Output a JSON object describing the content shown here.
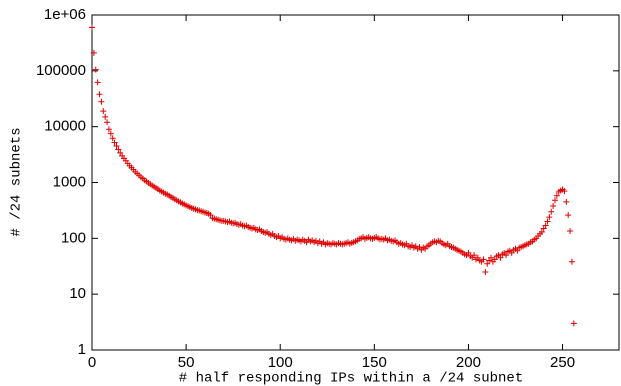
{
  "chart_data": {
    "type": "scatter",
    "xlabel": "# half responding IPs within a /24 subnet",
    "ylabel": "# /24 subnets",
    "ylog": true,
    "xlim": [
      0,
      280
    ],
    "ylim": [
      1,
      1000000
    ],
    "xticks": [
      0,
      50,
      100,
      150,
      200,
      250
    ],
    "yticks": [
      1,
      10,
      100,
      1000,
      10000,
      100000,
      {
        "value": 1000000,
        "label": "1e+06"
      }
    ],
    "series": [
      {
        "color": "#e00000",
        "x": [
          0,
          1,
          2,
          3,
          4,
          5,
          6,
          7,
          8,
          9,
          10,
          11,
          12,
          13,
          14,
          15,
          16,
          17,
          18,
          19,
          20,
          21,
          22,
          23,
          24,
          25,
          26,
          27,
          28,
          29,
          30,
          31,
          32,
          33,
          34,
          35,
          36,
          37,
          38,
          39,
          40,
          41,
          42,
          43,
          44,
          45,
          46,
          47,
          48,
          49,
          50,
          51,
          52,
          53,
          54,
          55,
          56,
          57,
          58,
          59,
          60,
          61,
          62,
          63,
          64,
          65,
          66,
          67,
          68,
          69,
          70,
          71,
          72,
          73,
          74,
          75,
          76,
          77,
          78,
          79,
          80,
          81,
          82,
          83,
          84,
          85,
          86,
          87,
          88,
          89,
          90,
          91,
          92,
          93,
          94,
          95,
          96,
          97,
          98,
          99,
          100,
          101,
          102,
          103,
          104,
          105,
          106,
          107,
          108,
          109,
          110,
          111,
          112,
          113,
          114,
          115,
          116,
          117,
          118,
          119,
          120,
          121,
          122,
          123,
          124,
          125,
          126,
          127,
          128,
          129,
          130,
          131,
          132,
          133,
          134,
          135,
          136,
          137,
          138,
          139,
          140,
          141,
          142,
          143,
          144,
          145,
          146,
          147,
          148,
          149,
          150,
          151,
          152,
          153,
          154,
          155,
          156,
          157,
          158,
          159,
          160,
          161,
          162,
          163,
          164,
          165,
          166,
          167,
          168,
          169,
          170,
          171,
          172,
          173,
          174,
          175,
          176,
          177,
          178,
          179,
          180,
          181,
          182,
          183,
          184,
          185,
          186,
          187,
          188,
          189,
          190,
          191,
          192,
          193,
          194,
          195,
          196,
          197,
          198,
          199,
          200,
          201,
          202,
          203,
          204,
          205,
          206,
          207,
          208,
          209,
          210,
          211,
          212,
          213,
          214,
          215,
          216,
          217,
          218,
          219,
          220,
          221,
          222,
          223,
          224,
          225,
          226,
          227,
          228,
          229,
          230,
          231,
          232,
          233,
          234,
          235,
          236,
          237,
          238,
          239,
          240,
          241,
          242,
          243,
          244,
          245,
          246,
          247,
          248,
          249,
          250,
          251,
          252,
          253,
          254,
          255,
          256
        ],
        "values": [
          600000,
          210000,
          105000,
          62000,
          38000,
          28000,
          19000,
          15000,
          12000,
          9000,
          7500,
          6200,
          5200,
          4500,
          3900,
          3400,
          3000,
          2700,
          2450,
          2200,
          2000,
          1850,
          1700,
          1550,
          1450,
          1350,
          1250,
          1180,
          1100,
          1040,
          980,
          930,
          880,
          840,
          800,
          760,
          720,
          690,
          660,
          630,
          610,
          580,
          550,
          530,
          500,
          480,
          460,
          440,
          420,
          405,
          390,
          375,
          365,
          350,
          340,
          330,
          320,
          315,
          305,
          300,
          290,
          285,
          275,
          260,
          230,
          225,
          220,
          215,
          210,
          205,
          205,
          200,
          195,
          200,
          190,
          185,
          190,
          180,
          175,
          180,
          170,
          165,
          170,
          160,
          155,
          150,
          155,
          145,
          140,
          145,
          135,
          130,
          125,
          130,
          120,
          115,
          120,
          110,
          105,
          110,
          100,
          105,
          98,
          95,
          100,
          95,
          92,
          98,
          90,
          95,
          92,
          88,
          95,
          90,
          85,
          95,
          88,
          92,
          85,
          90,
          82,
          88,
          80,
          85,
          78,
          82,
          80,
          78,
          82,
          80,
          78,
          82,
          80,
          78,
          80,
          82,
          85,
          80,
          83,
          85,
          88,
          92,
          98,
          100,
          105,
          98,
          102,
          105,
          100,
          98,
          102,
          105,
          100,
          96,
          98,
          95,
          100,
          92,
          95,
          90,
          88,
          92,
          85,
          80,
          82,
          78,
          75,
          80,
          72,
          70,
          75,
          68,
          72,
          65,
          70,
          62,
          68,
          65,
          72,
          75,
          80,
          85,
          88,
          85,
          90,
          88,
          82,
          78,
          75,
          80,
          72,
          70,
          68,
          65,
          62,
          60,
          58,
          55,
          52,
          50,
          55,
          48,
          45,
          50,
          42,
          45,
          40,
          38,
          42,
          25,
          35,
          40,
          45,
          38,
          42,
          48,
          50,
          45,
          52,
          55,
          50,
          58,
          60,
          55,
          62,
          65,
          60,
          68,
          70,
          72,
          75,
          78,
          80,
          85,
          88,
          95,
          100,
          110,
          120,
          130,
          150,
          170,
          200,
          240,
          300,
          380,
          480,
          580,
          680,
          720,
          750,
          700,
          450,
          260,
          135,
          38,
          3
        ]
      }
    ]
  }
}
